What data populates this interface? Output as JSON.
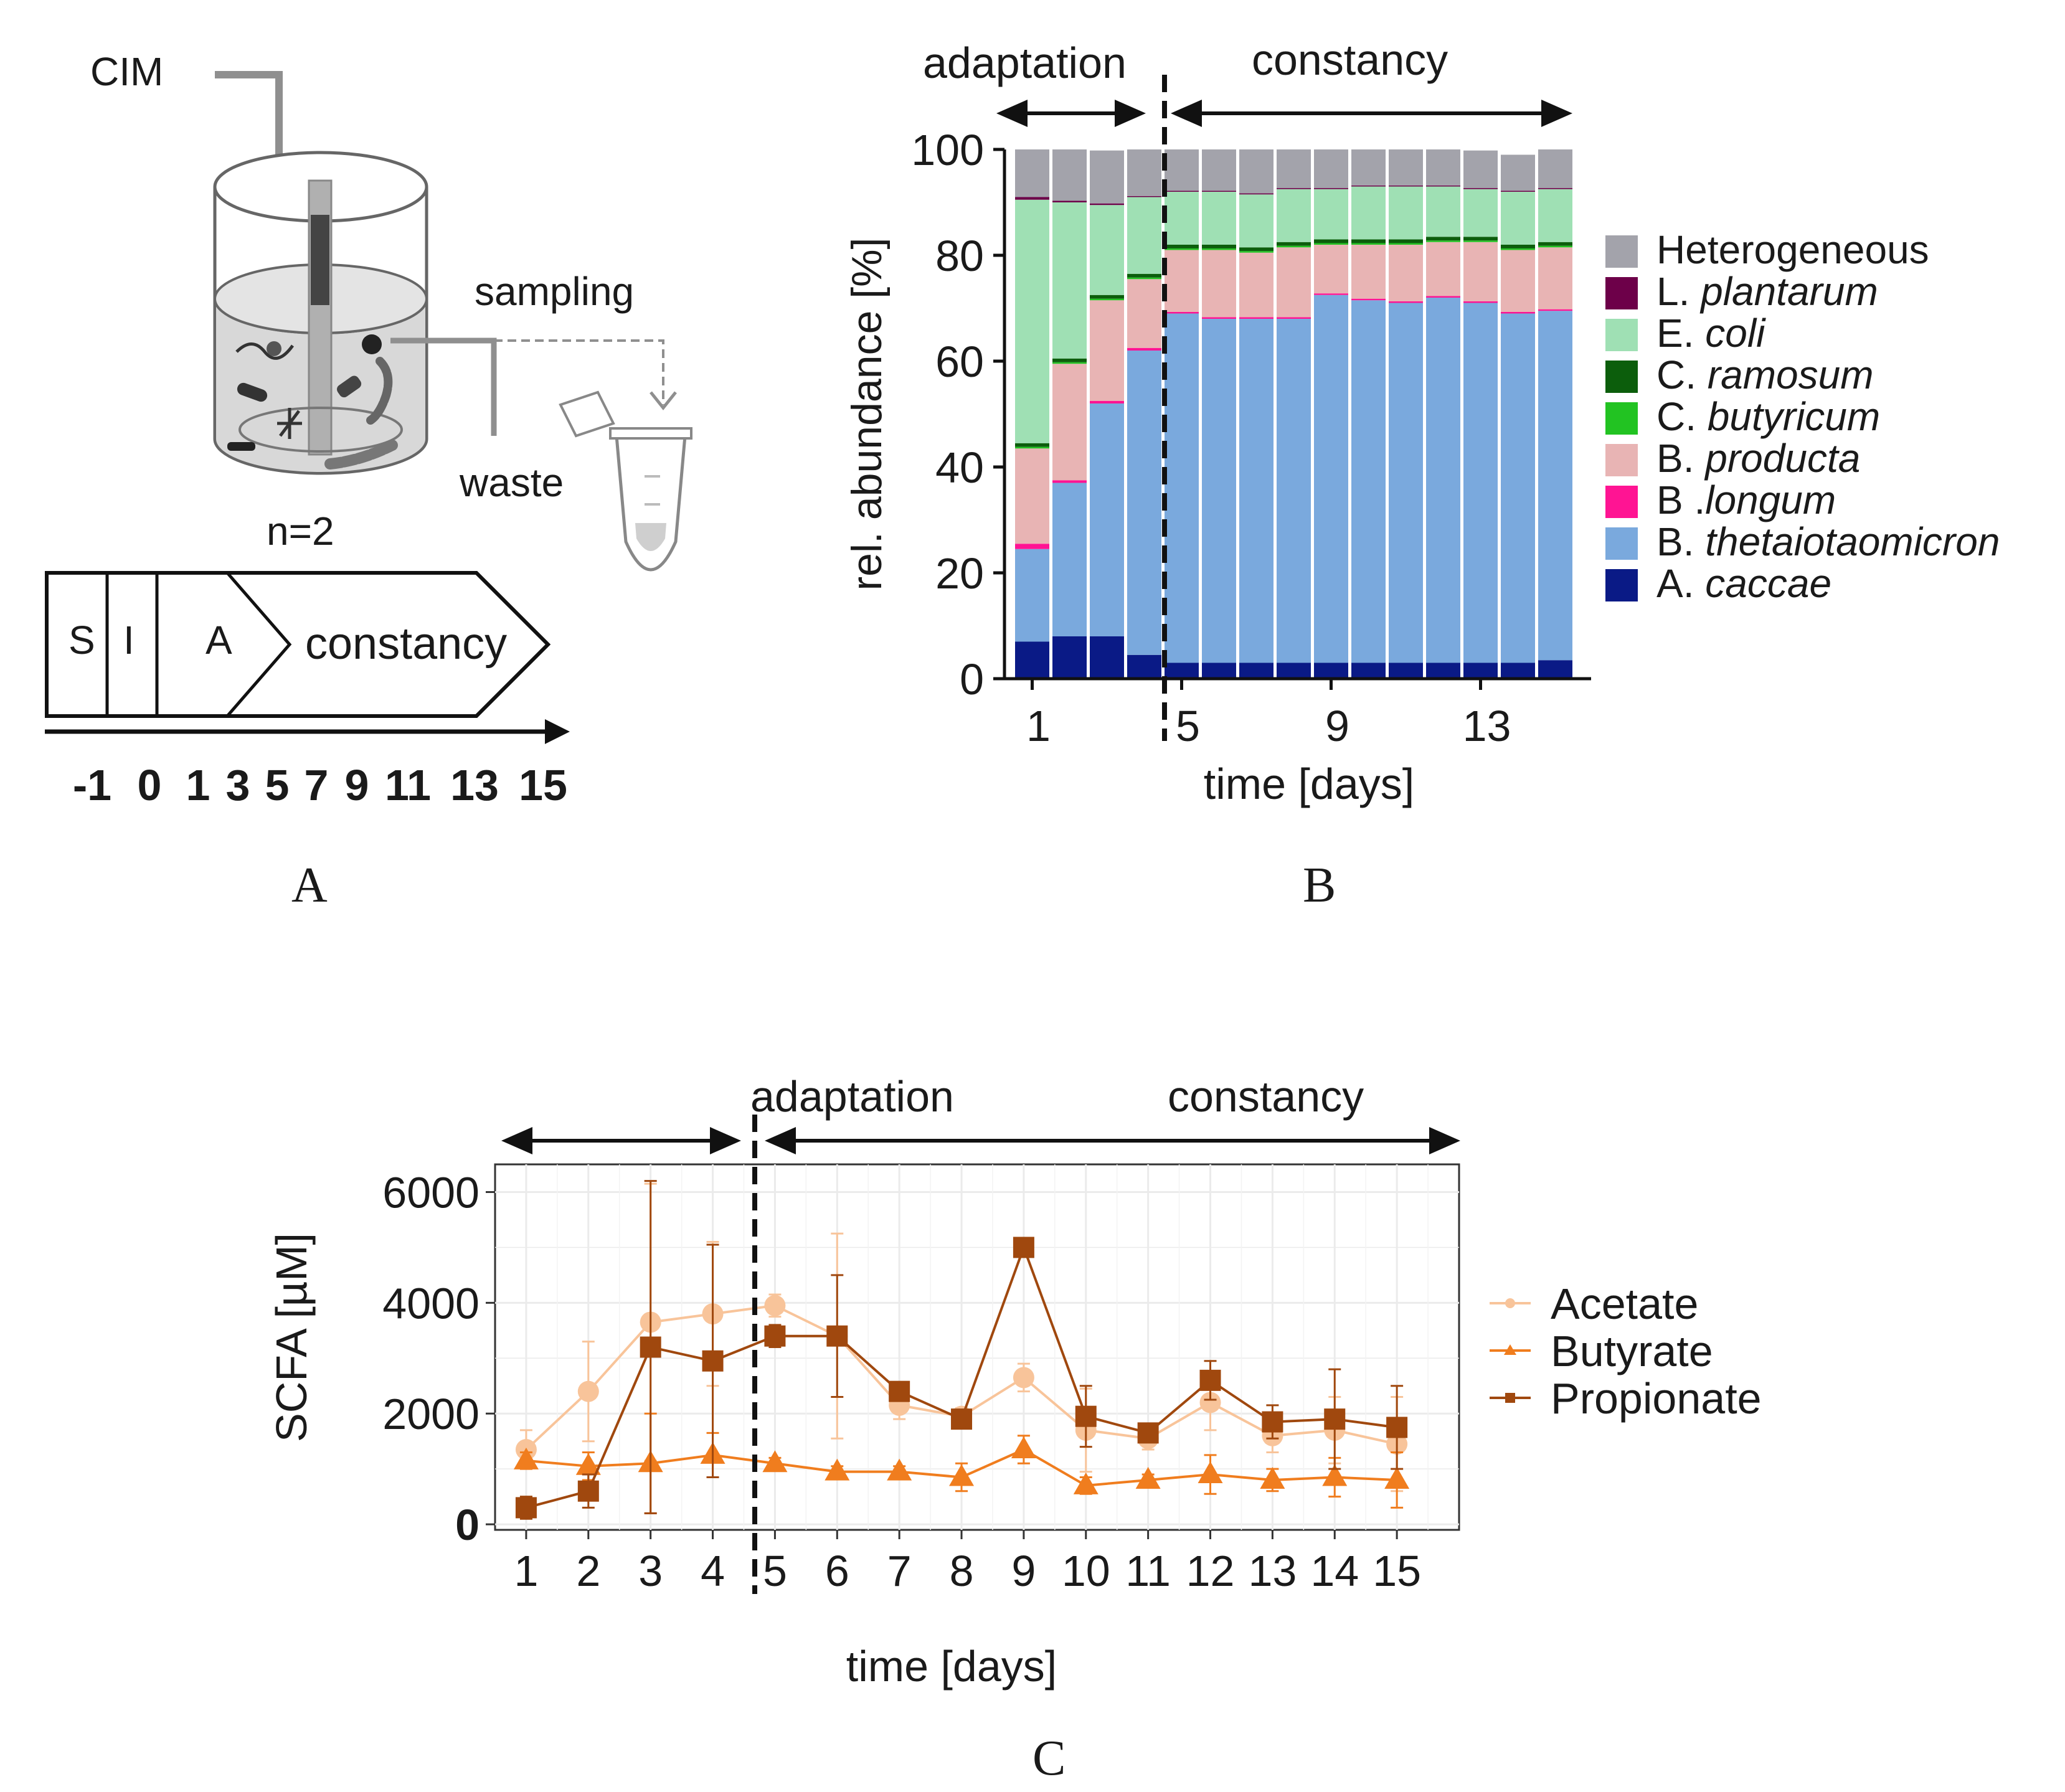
{
  "figure": {
    "panel_labels": {
      "a": "A",
      "b": "B",
      "c": "C"
    }
  },
  "panel_a": {
    "cim_label": "CIM",
    "sampling_label": "sampling",
    "waste_label": "waste",
    "n_label": "n=2",
    "phases": [
      "S",
      "I",
      "A",
      "constancy"
    ],
    "timeline_ticks": [
      "-1",
      "0",
      "1",
      "3",
      "5",
      "7",
      "9",
      "11",
      "13",
      "15"
    ]
  },
  "chart_data": [
    {
      "type": "bar",
      "stacked": true,
      "id": "B",
      "xlabel": "time [days]",
      "ylabel": "rel. abundance [%]",
      "ylim": [
        0,
        100
      ],
      "yticks": [
        "0",
        "20",
        "40",
        "60",
        "80",
        "100"
      ],
      "xtick_labels": [
        {
          "day": 1,
          "label": "1"
        },
        {
          "day": 5,
          "label": "5"
        },
        {
          "day": 9,
          "label": "9"
        },
        {
          "day": 13,
          "label": "13"
        }
      ],
      "phase_labels": {
        "adaptation": "adaptation",
        "constancy": "constancy"
      },
      "phase_boundary_day": 4.5,
      "categories": [
        1,
        2,
        3,
        4,
        5,
        6,
        7,
        8,
        9,
        10,
        11,
        12,
        13,
        14,
        15
      ],
      "legend": [
        {
          "prefix": "Heterogeneous",
          "italic": ""
        },
        {
          "prefix": "L. ",
          "italic": "plantarum"
        },
        {
          "prefix": "E. ",
          "italic": "coli"
        },
        {
          "prefix": "C. ",
          "italic": "ramosum"
        },
        {
          "prefix": "C. ",
          "italic": "butyricum"
        },
        {
          "prefix": "B. ",
          "italic": "producta"
        },
        {
          "prefix": "B .",
          "italic": "longum"
        },
        {
          "prefix": "B. ",
          "italic": "thetaiotaomicron"
        },
        {
          "prefix": "A. ",
          "italic": "caccae"
        }
      ],
      "series": [
        {
          "name": "A. caccae",
          "color": "#0a1a86",
          "values": [
            7,
            8,
            8,
            4.5,
            3,
            3,
            3,
            3,
            3,
            3,
            3,
            3,
            3,
            3,
            3.5
          ]
        },
        {
          "name": "B. thetaiotaomicron",
          "color": "#7aa9dd",
          "values": [
            17.5,
            29,
            44,
            57.5,
            66,
            65,
            65,
            65,
            69.5,
            68.5,
            68,
            69,
            68,
            66,
            66
          ]
        },
        {
          "name": "B .longum",
          "color": "#ff1493",
          "values": [
            1,
            0.5,
            0.5,
            0.5,
            0.3,
            0.3,
            0.3,
            0.3,
            0.3,
            0.3,
            0.3,
            0.3,
            0.3,
            0.3,
            0.3
          ]
        },
        {
          "name": "B. producta",
          "color": "#e8b4b4",
          "values": [
            18,
            22,
            19,
            13,
            11.7,
            12.7,
            12.2,
            13.2,
            9.2,
            10.2,
            10.7,
            10.2,
            11.2,
            11.7,
            11.7
          ]
        },
        {
          "name": "C. butyricum",
          "color": "#22c322",
          "values": [
            0.3,
            0.3,
            0.3,
            0.3,
            0.3,
            0.3,
            0.3,
            0.3,
            0.3,
            0.3,
            0.3,
            0.3,
            0.3,
            0.3,
            0.3
          ]
        },
        {
          "name": "C. ramosum",
          "color": "#0c5e0c",
          "values": [
            0.7,
            0.7,
            0.7,
            0.7,
            0.7,
            0.7,
            0.7,
            0.7,
            0.7,
            0.7,
            0.7,
            0.7,
            0.7,
            0.7,
            0.7
          ]
        },
        {
          "name": "E. coli",
          "color": "#9fe0b4",
          "values": [
            46,
            29.5,
            17,
            14.5,
            10,
            10,
            10,
            10,
            9.5,
            10,
            10,
            9.5,
            9,
            10,
            10
          ]
        },
        {
          "name": "L. plantarum",
          "color": "#6d0049",
          "values": [
            0.5,
            0.3,
            0.3,
            0.2,
            0.2,
            0.2,
            0.2,
            0.2,
            0.2,
            0.2,
            0.2,
            0.2,
            0.2,
            0.2,
            0.2
          ]
        },
        {
          "name": "Heterogeneous",
          "color": "#a3a3ab",
          "values": [
            9,
            9.7,
            10,
            8.8,
            7.8,
            7.8,
            8.3,
            7.3,
            7.3,
            6.8,
            6.8,
            6.8,
            7.1,
            6.8,
            7.3
          ]
        }
      ]
    },
    {
      "type": "line",
      "id": "C",
      "xlabel": "time [days]",
      "ylabel": "SCFA [µM]",
      "ylim": [
        -100,
        6500
      ],
      "yticks": [
        "0",
        "2000",
        "4000",
        "6000"
      ],
      "xlim": [
        0.5,
        16
      ],
      "x": [
        1,
        2,
        3,
        4,
        5,
        6,
        7,
        8,
        9,
        10,
        11,
        12,
        13,
        14,
        15
      ],
      "xtick_labels": [
        "1",
        "2",
        "3",
        "4",
        "5",
        "6",
        "7",
        "8",
        "9",
        "10",
        "11",
        "12",
        "13",
        "14",
        "15"
      ],
      "phase_labels": {
        "adaptation": "adaptation",
        "constancy": "constancy"
      },
      "phase_boundary_day": 4.5,
      "grid": true,
      "legend_position": "right",
      "series": [
        {
          "name": "Acetate",
          "color": "#f8c49a",
          "marker": "circle",
          "values": [
            1350,
            2400,
            3650,
            3800,
            3950,
            3400,
            2150,
            1950,
            2650,
            1700,
            1550,
            2200,
            1600,
            1700,
            1450
          ],
          "errors": [
            350,
            900,
            2500,
            1300,
            200,
            1850,
            250,
            150,
            250,
            750,
            200,
            500,
            300,
            600,
            850
          ]
        },
        {
          "name": "Butyrate",
          "color": "#f07d1e",
          "marker": "triangle",
          "values": [
            1150,
            1050,
            1100,
            1250,
            1100,
            950,
            950,
            850,
            1350,
            700,
            800,
            900,
            800,
            850,
            800
          ],
          "errors": [
            150,
            250,
            900,
            400,
            100,
            100,
            100,
            250,
            250,
            150,
            100,
            350,
            200,
            350,
            500
          ]
        },
        {
          "name": "Propionate",
          "color": "#a0480e",
          "marker": "square",
          "values": [
            300,
            600,
            3200,
            2950,
            3400,
            3400,
            2400,
            1900,
            5000,
            1950,
            1650,
            2600,
            1850,
            1900,
            1750
          ],
          "errors": [
            200,
            300,
            3000,
            2100,
            200,
            1100,
            150,
            150,
            150,
            550,
            100,
            350,
            300,
            900,
            750
          ]
        }
      ]
    }
  ]
}
